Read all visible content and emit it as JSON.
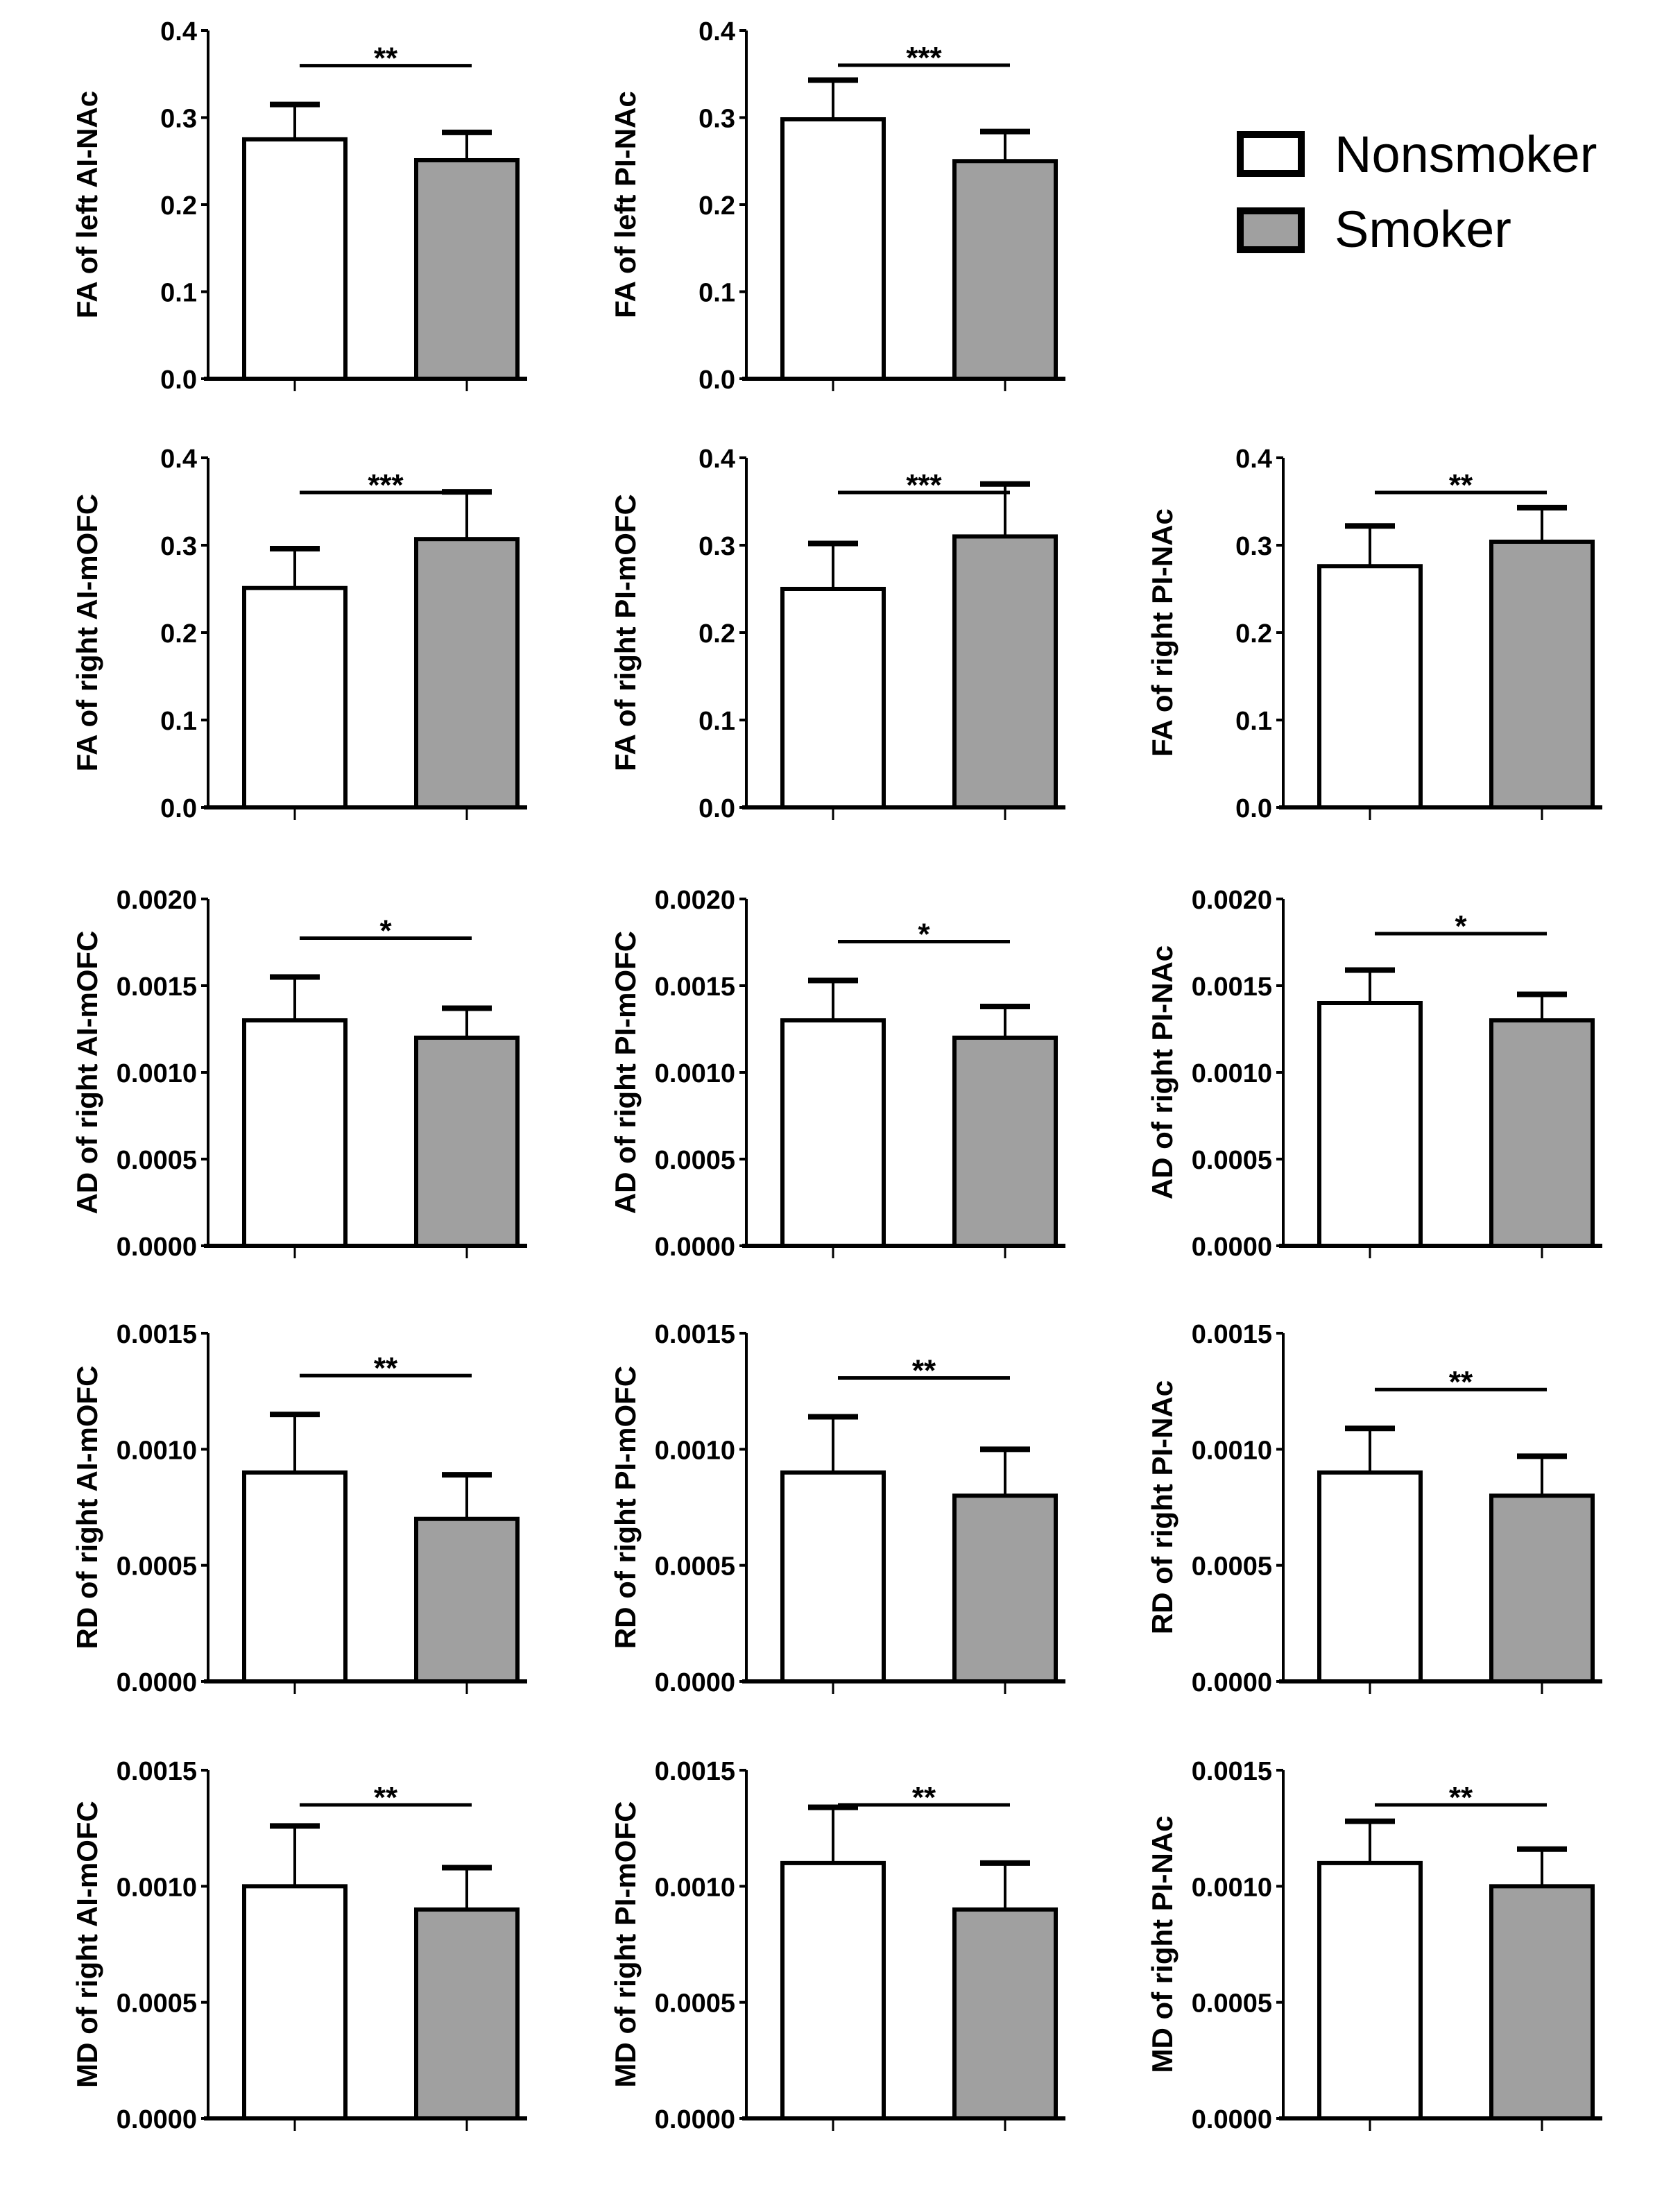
{
  "legend": {
    "position": "top-right",
    "items": [
      {
        "label": "Nonsmoker",
        "color": "#ffffff"
      },
      {
        "label": "Smoker",
        "color": "#a0a0a0"
      }
    ]
  },
  "chart_data": [
    {
      "type": "bar",
      "ylabel": "FA of left AI-NAc",
      "ylim": [
        0,
        0.4
      ],
      "yticks": [
        "0.0",
        "0.1",
        "0.2",
        "0.3",
        "0.4"
      ],
      "categories": [
        "Nonsmoker",
        "Smoker"
      ],
      "values": [
        0.275,
        0.251
      ],
      "error_upper": [
        0.315,
        0.283
      ],
      "significance": "**"
    },
    {
      "type": "bar",
      "ylabel": "FA of left PI-NAc",
      "ylim": [
        0,
        0.4
      ],
      "yticks": [
        "0.0",
        "0.1",
        "0.2",
        "0.3",
        "0.4"
      ],
      "categories": [
        "Nonsmoker",
        "Smoker"
      ],
      "values": [
        0.298,
        0.25
      ],
      "error_upper": [
        0.343,
        0.284
      ],
      "significance": "***"
    },
    {
      "type": "bar",
      "ylabel": "FA of right AI-mOFC",
      "ylim": [
        0,
        0.4
      ],
      "yticks": [
        "0.0",
        "0.1",
        "0.2",
        "0.3",
        "0.4"
      ],
      "categories": [
        "Nonsmoker",
        "Smoker"
      ],
      "values": [
        0.251,
        0.307
      ],
      "error_upper": [
        0.296,
        0.361
      ],
      "significance": "***"
    },
    {
      "type": "bar",
      "ylabel": "FA of right PI-mOFC",
      "ylim": [
        0,
        0.4
      ],
      "yticks": [
        "0.0",
        "0.1",
        "0.2",
        "0.3",
        "0.4"
      ],
      "categories": [
        "Nonsmoker",
        "Smoker"
      ],
      "values": [
        0.25,
        0.31
      ],
      "error_upper": [
        0.302,
        0.37
      ],
      "significance": "***"
    },
    {
      "type": "bar",
      "ylabel": "FA of right PI-NAc",
      "ylim": [
        0,
        0.4
      ],
      "yticks": [
        "0.0",
        "0.1",
        "0.2",
        "0.3",
        "0.4"
      ],
      "categories": [
        "Nonsmoker",
        "Smoker"
      ],
      "values": [
        0.276,
        0.304
      ],
      "error_upper": [
        0.322,
        0.343
      ],
      "significance": "**"
    },
    {
      "type": "bar",
      "ylabel": "AD of right AI-mOFC",
      "ylim": [
        0,
        0.002
      ],
      "yticks": [
        "0.0000",
        "0.0005",
        "0.0010",
        "0.0015",
        "0.0020"
      ],
      "categories": [
        "Nonsmoker",
        "Smoker"
      ],
      "values": [
        0.0013,
        0.0012
      ],
      "error_upper": [
        0.00155,
        0.00137
      ],
      "significance": "*"
    },
    {
      "type": "bar",
      "ylabel": "AD of right PI-mOFC",
      "ylim": [
        0,
        0.002
      ],
      "yticks": [
        "0.0000",
        "0.0005",
        "0.0010",
        "0.0015",
        "0.0020"
      ],
      "categories": [
        "Nonsmoker",
        "Smoker"
      ],
      "values": [
        0.0013,
        0.0012
      ],
      "error_upper": [
        0.00153,
        0.00138
      ],
      "significance": "*"
    },
    {
      "type": "bar",
      "ylabel": "AD of right PI-NAc",
      "ylim": [
        0,
        0.002
      ],
      "yticks": [
        "0.0000",
        "0.0005",
        "0.0010",
        "0.0015",
        "0.0020"
      ],
      "categories": [
        "Nonsmoker",
        "Smoker"
      ],
      "values": [
        0.0014,
        0.0013
      ],
      "error_upper": [
        0.00159,
        0.00145
      ],
      "significance": "*"
    },
    {
      "type": "bar",
      "ylabel": "RD of right AI-mOFC",
      "ylim": [
        0,
        0.0015
      ],
      "yticks": [
        "0.0000",
        "0.0005",
        "0.0010",
        "0.0015"
      ],
      "categories": [
        "Nonsmoker",
        "Smoker"
      ],
      "values": [
        0.0009,
        0.0007
      ],
      "error_upper": [
        0.00115,
        0.00089
      ],
      "significance": "**"
    },
    {
      "type": "bar",
      "ylabel": "RD of right PI-mOFC",
      "ylim": [
        0,
        0.0015
      ],
      "yticks": [
        "0.0000",
        "0.0005",
        "0.0010",
        "0.0015"
      ],
      "categories": [
        "Nonsmoker",
        "Smoker"
      ],
      "values": [
        0.0009,
        0.0008
      ],
      "error_upper": [
        0.00114,
        0.001
      ],
      "significance": "**"
    },
    {
      "type": "bar",
      "ylabel": "RD of right PI-NAc",
      "ylim": [
        0,
        0.0015
      ],
      "yticks": [
        "0.0000",
        "0.0005",
        "0.0010",
        "0.0015"
      ],
      "categories": [
        "Nonsmoker",
        "Smoker"
      ],
      "values": [
        0.0009,
        0.0008
      ],
      "error_upper": [
        0.00109,
        0.00097
      ],
      "significance": "**"
    },
    {
      "type": "bar",
      "ylabel": "MD of right AI-mOFC",
      "ylim": [
        0,
        0.0015
      ],
      "yticks": [
        "0.0000",
        "0.0005",
        "0.0010",
        "0.0015"
      ],
      "categories": [
        "Nonsmoker",
        "Smoker"
      ],
      "values": [
        0.001,
        0.0009
      ],
      "error_upper": [
        0.00126,
        0.00108
      ],
      "significance": "**"
    },
    {
      "type": "bar",
      "ylabel": "MD of right PI-mOFC",
      "ylim": [
        0,
        0.0015
      ],
      "yticks": [
        "0.0000",
        "0.0005",
        "0.0010",
        "0.0015"
      ],
      "categories": [
        "Nonsmoker",
        "Smoker"
      ],
      "values": [
        0.0011,
        0.0009
      ],
      "error_upper": [
        0.00134,
        0.0011
      ],
      "significance": "**"
    },
    {
      "type": "bar",
      "ylabel": "MD of right PI-NAc",
      "ylim": [
        0,
        0.0015
      ],
      "yticks": [
        "0.0000",
        "0.0005",
        "0.0010",
        "0.0015"
      ],
      "categories": [
        "Nonsmoker",
        "Smoker"
      ],
      "values": [
        0.0011,
        0.001
      ],
      "error_upper": [
        0.00128,
        0.00116
      ],
      "significance": "**"
    }
  ]
}
